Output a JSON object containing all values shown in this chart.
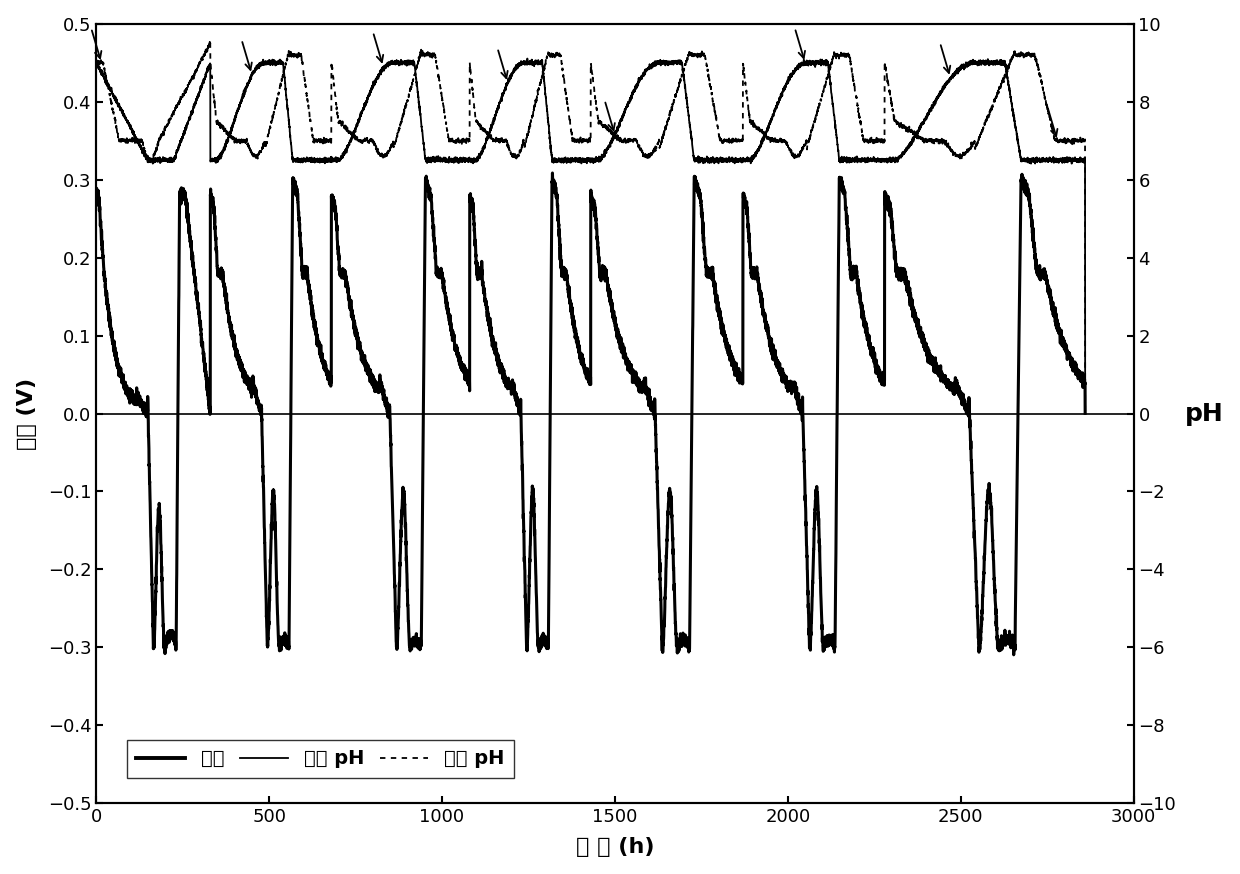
{
  "title": "",
  "xlabel": "时 间 (h)",
  "ylabel_left": "电压 (V)",
  "ylabel_right": "pH",
  "xlim": [
    0,
    3000
  ],
  "ylim_left": [
    -0.5,
    0.5
  ],
  "ylim_right": [
    -10,
    10
  ],
  "xticks": [
    0,
    500,
    1000,
    1500,
    2000,
    2500,
    3000
  ],
  "yticks_left": [
    -0.5,
    -0.4,
    -0.3,
    -0.2,
    -0.1,
    0.0,
    0.1,
    0.2,
    0.3,
    0.4,
    0.5
  ],
  "yticks_right": [
    -10,
    -8,
    -6,
    -4,
    -2,
    0,
    2,
    4,
    6,
    8,
    10
  ],
  "legend_labels": [
    "电压",
    "阳极 pH",
    "阴极 pH"
  ],
  "line_color": "#000000",
  "background_color": "#ffffff",
  "font_size": 14,
  "label_font_size": 16
}
